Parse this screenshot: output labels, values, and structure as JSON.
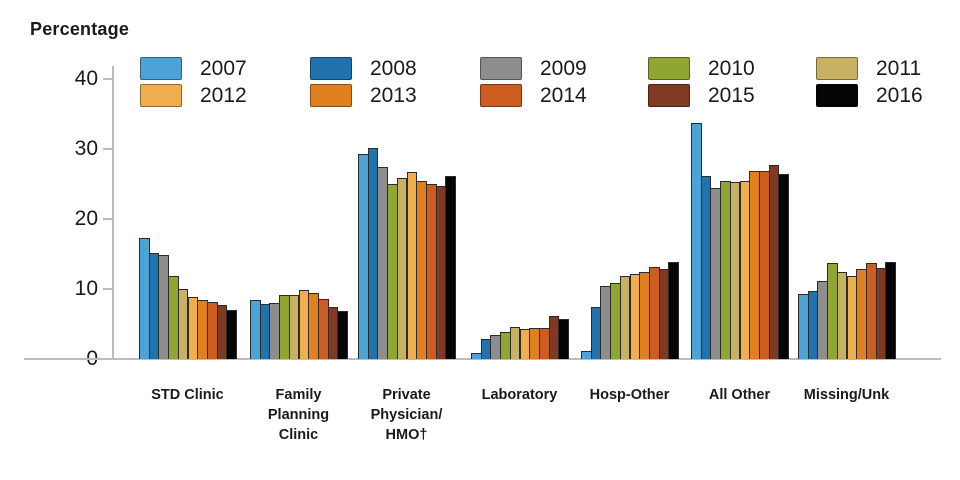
{
  "chart_data": {
    "type": "bar",
    "title": "Percentage",
    "ylabel": "Percentage",
    "xlabel": "",
    "ylim": [
      0,
      40
    ],
    "yticks": [
      0,
      10,
      20,
      30,
      40
    ],
    "grid": false,
    "legend_position": "top (5 columns x 2 rows)",
    "axis_color": "#bcbcbc",
    "text_color": "#1a1a1a",
    "bar_outline_color": "#2b2b2b",
    "categories": [
      "STD Clinic",
      "Family Planning Clinic",
      "Private Physician/HMO†",
      "Laboratory",
      "Hosp-Other",
      "All Other",
      "Missing/Unk"
    ],
    "category_label_lines": [
      [
        "STD Clinic"
      ],
      [
        "Family",
        "Planning",
        "Clinic"
      ],
      [
        "Private",
        "Physician/",
        "HMO†"
      ],
      [
        "Laboratory"
      ],
      [
        "Hosp-Other"
      ],
      [
        "All Other"
      ],
      [
        "Missing/Unk"
      ]
    ],
    "series": [
      {
        "name": "2007",
        "color": "#4BA3D6",
        "values": [
          17.3,
          8.4,
          29.3,
          0.8,
          1.1,
          33.7,
          9.3
        ]
      },
      {
        "name": "2008",
        "color": "#2273AD",
        "values": [
          15.2,
          7.9,
          30.2,
          2.8,
          7.5,
          26.2,
          9.7
        ]
      },
      {
        "name": "2009",
        "color": "#8D8D8D",
        "values": [
          14.9,
          8.0,
          27.4,
          3.5,
          10.5,
          24.4,
          11.1
        ]
      },
      {
        "name": "2010",
        "color": "#8FA632",
        "values": [
          11.8,
          9.2,
          25.0,
          3.9,
          10.8,
          25.5,
          13.7
        ]
      },
      {
        "name": "2011",
        "color": "#C7B264",
        "values": [
          10.0,
          9.1,
          25.9,
          4.6,
          11.9,
          25.3,
          12.4
        ]
      },
      {
        "name": "2012",
        "color": "#F0AF4C",
        "values": [
          8.9,
          9.9,
          26.7,
          4.3,
          12.1,
          25.5,
          11.9
        ]
      },
      {
        "name": "2013",
        "color": "#E0801F",
        "values": [
          8.5,
          9.4,
          25.4,
          4.5,
          12.5,
          26.8,
          12.8
        ]
      },
      {
        "name": "2014",
        "color": "#CC5C20",
        "values": [
          8.1,
          8.6,
          25.0,
          4.5,
          13.2,
          26.8,
          13.7
        ]
      },
      {
        "name": "2015",
        "color": "#7E3A22",
        "values": [
          7.7,
          7.4,
          24.7,
          6.1,
          12.8,
          27.7,
          13.0
        ]
      },
      {
        "name": "2016",
        "color": "#050505",
        "values": [
          7.0,
          6.9,
          26.2,
          5.7,
          13.9,
          26.5,
          13.9
        ]
      }
    ],
    "legend_columns": [
      [
        "2007",
        "2012"
      ],
      [
        "2008",
        "2013"
      ],
      [
        "2009",
        "2014"
      ],
      [
        "2010",
        "2015"
      ],
      [
        "2011",
        "2016"
      ]
    ]
  }
}
